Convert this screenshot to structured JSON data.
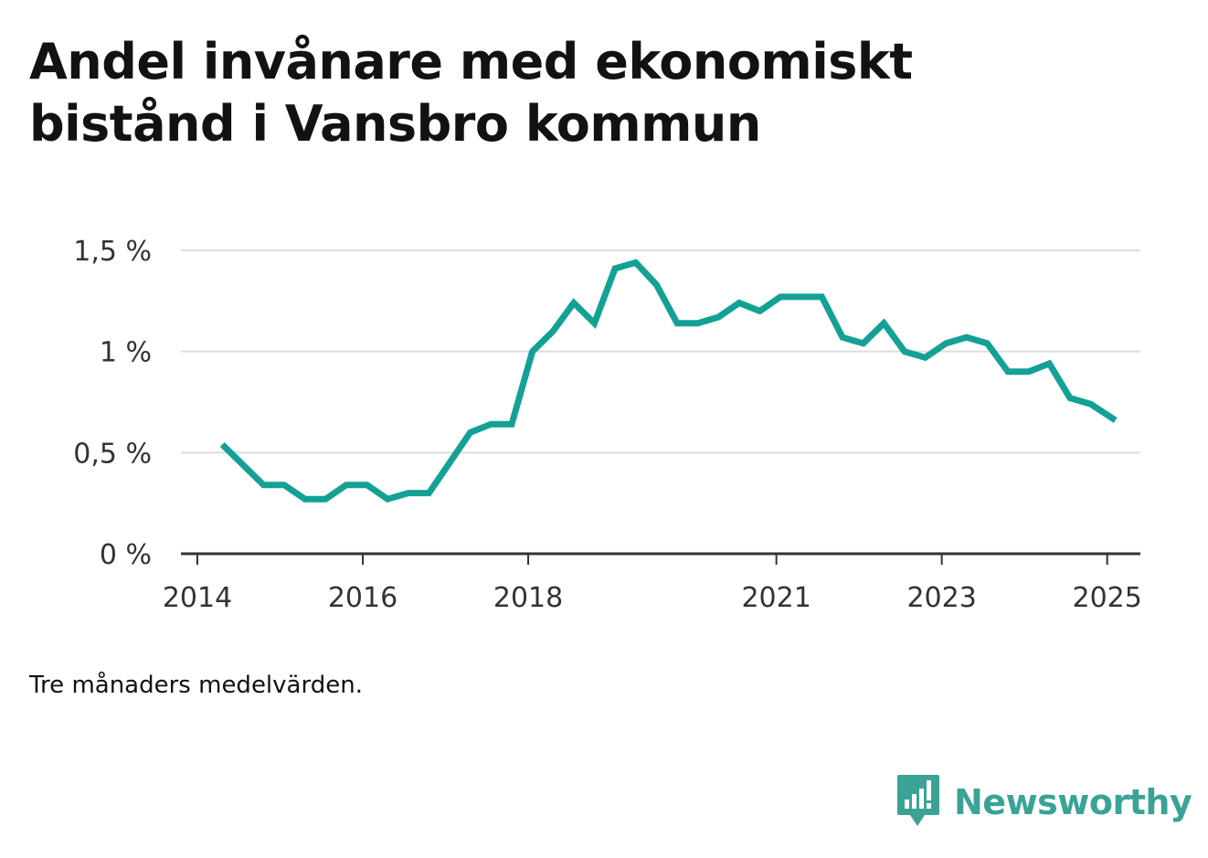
{
  "title": "Andel invånare med ekonomiskt bistånd i Vansbro kommun",
  "note": "Tre månaders medelvärden.",
  "brand": {
    "name": "Newsworthy",
    "icon": "newsworthy-logo-icon",
    "color": "#3aa396"
  },
  "colors": {
    "line": "#14a195",
    "grid": "#dddddd",
    "axis": "#333333"
  },
  "chart_data": {
    "type": "line",
    "title": "Andel invånare med ekonomiskt bistånd i Vansbro kommun",
    "xlabel": "",
    "ylabel": "",
    "ylim": [
      0,
      1.5
    ],
    "xlim": [
      2014,
      2025.6
    ],
    "y_ticks": [
      0,
      0.5,
      1,
      1.5
    ],
    "y_tick_labels": [
      "0 %",
      "0,5 %",
      "1 %",
      "1,5 %"
    ],
    "x_ticks": [
      2014,
      2016,
      2018,
      2021,
      2023,
      2025
    ],
    "x_tick_labels": [
      "2014",
      "2016",
      "2018",
      "2021",
      "2023",
      "2025"
    ],
    "grid": true,
    "series": [
      {
        "x": [
          2014.3,
          2014.55,
          2014.8,
          2015.05,
          2015.3,
          2015.55,
          2015.8,
          2016.05,
          2016.3,
          2016.55,
          2016.8,
          2017.05,
          2017.3,
          2017.55,
          2017.8,
          2018.05,
          2018.3,
          2018.55,
          2018.8,
          2019.05,
          2019.3,
          2019.55,
          2019.8,
          2020.05,
          2020.3,
          2020.55,
          2020.8,
          2021.05,
          2021.3,
          2021.55,
          2021.8,
          2022.05,
          2022.3,
          2022.55,
          2022.8,
          2023.05,
          2023.3,
          2023.55,
          2023.8,
          2024.05,
          2024.3,
          2024.55,
          2024.8,
          2025.1
        ],
        "values": [
          0.54,
          0.44,
          0.34,
          0.34,
          0.27,
          0.27,
          0.34,
          0.34,
          0.27,
          0.3,
          0.3,
          0.45,
          0.6,
          0.64,
          0.64,
          1.0,
          1.1,
          1.24,
          1.14,
          1.41,
          1.44,
          1.33,
          1.14,
          1.14,
          1.17,
          1.24,
          1.2,
          1.27,
          1.27,
          1.27,
          1.07,
          1.04,
          1.14,
          1.0,
          0.97,
          1.04,
          1.07,
          1.04,
          0.9,
          0.9,
          0.94,
          0.77,
          0.74,
          0.66
        ]
      }
    ]
  }
}
